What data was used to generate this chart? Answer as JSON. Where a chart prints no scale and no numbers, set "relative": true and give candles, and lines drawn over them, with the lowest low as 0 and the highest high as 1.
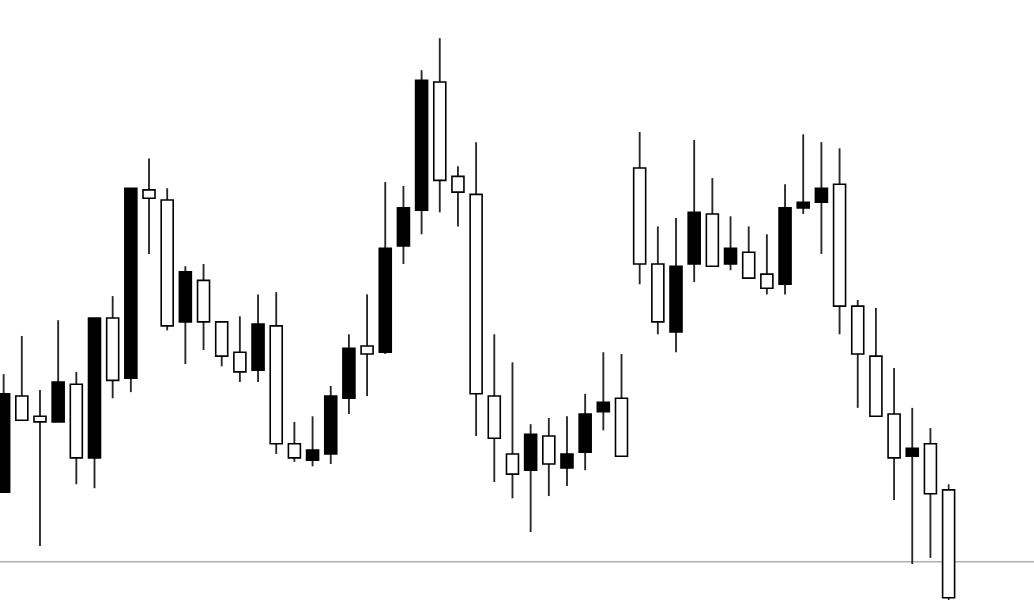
{
  "chart_data": {
    "type": "candlestick",
    "relative": true,
    "categories": [
      null,
      null,
      null,
      null,
      null,
      null,
      null,
      null,
      null,
      null,
      null,
      null,
      null,
      null,
      null,
      null,
      null,
      null,
      null,
      null,
      null,
      null,
      null,
      null,
      null,
      null,
      null,
      null,
      null,
      null,
      null,
      null,
      null,
      null,
      null,
      null,
      null,
      null,
      null,
      null,
      null,
      null,
      null,
      null,
      null,
      null,
      null,
      null,
      null,
      null,
      null,
      null,
      null
    ],
    "ohlc": [
      [
        0.192,
        0.402,
        0.192,
        0.367
      ],
      [
        0.363,
        0.47,
        0.32,
        0.32
      ],
      [
        0.327,
        0.374,
        0.096,
        0.317
      ],
      [
        0.317,
        0.498,
        0.317,
        0.388
      ],
      [
        0.384,
        0.406,
        0.206,
        0.253
      ],
      [
        0.253,
        0.502,
        0.199,
        0.502
      ],
      [
        0.502,
        0.541,
        0.359,
        0.391
      ],
      [
        0.395,
        0.733,
        0.37,
        0.733
      ],
      [
        0.73,
        0.786,
        0.616,
        0.715
      ],
      [
        0.712,
        0.733,
        0.48,
        0.488
      ],
      [
        0.495,
        0.594,
        0.42,
        0.584
      ],
      [
        0.569,
        0.598,
        0.445,
        0.495
      ],
      [
        0.495,
        0.495,
        0.416,
        0.434
      ],
      [
        0.441,
        0.505,
        0.388,
        0.406
      ],
      [
        0.409,
        0.544,
        0.388,
        0.491
      ],
      [
        0.488,
        0.548,
        0.26,
        0.278
      ],
      [
        0.278,
        0.317,
        0.246,
        0.253
      ],
      [
        0.249,
        0.327,
        0.238,
        0.267
      ],
      [
        0.26,
        0.381,
        0.242,
        0.363
      ],
      [
        0.359,
        0.473,
        0.331,
        0.448
      ],
      [
        0.452,
        0.544,
        0.363,
        0.438
      ],
      [
        0.441,
        0.744,
        0.438,
        0.626
      ],
      [
        0.63,
        0.737,
        0.598,
        0.698
      ],
      [
        0.694,
        0.943,
        0.651,
        0.925
      ],
      [
        0.922,
        1.0,
        0.69,
        0.747
      ],
      [
        0.754,
        0.772,
        0.665,
        0.726
      ],
      [
        0.722,
        0.815,
        0.292,
        0.367
      ],
      [
        0.363,
        0.473,
        0.21,
        0.288
      ],
      [
        0.26,
        0.423,
        0.181,
        0.224
      ],
      [
        0.231,
        0.313,
        0.121,
        0.295
      ],
      [
        0.292,
        0.324,
        0.185,
        0.242
      ],
      [
        0.235,
        0.327,
        0.203,
        0.26
      ],
      [
        0.263,
        0.367,
        0.231,
        0.331
      ],
      [
        0.335,
        0.441,
        0.302,
        0.352
      ],
      [
        0.359,
        0.438,
        0.256,
        0.256
      ],
      [
        0.769,
        0.833,
        0.562,
        0.598
      ],
      [
        0.598,
        0.665,
        0.473,
        0.495
      ],
      [
        0.477,
        0.68,
        0.441,
        0.594
      ],
      [
        0.598,
        0.819,
        0.566,
        0.69
      ],
      [
        0.687,
        0.751,
        0.594,
        0.594
      ],
      [
        0.598,
        0.683,
        0.587,
        0.626
      ],
      [
        0.619,
        0.665,
        0.573,
        0.573
      ],
      [
        0.58,
        0.651,
        0.544,
        0.555
      ],
      [
        0.562,
        0.74,
        0.544,
        0.698
      ],
      [
        0.698,
        0.829,
        0.687,
        0.708
      ],
      [
        0.708,
        0.815,
        0.616,
        0.733
      ],
      [
        0.74,
        0.804,
        0.473,
        0.523
      ],
      [
        0.523,
        0.534,
        0.342,
        0.438
      ],
      [
        0.434,
        0.52,
        0.327,
        0.327
      ],
      [
        0.331,
        0.413,
        0.178,
        0.253
      ],
      [
        0.256,
        0.342,
        0.064,
        0.27
      ],
      [
        0.278,
        0.306,
        0.075,
        0.189
      ],
      [
        0.196,
        0.206,
        0.0,
        0.004
      ]
    ],
    "ref_lines": [
      {
        "axis": "y",
        "value": 0.068,
        "color": "#a8b0b8"
      }
    ]
  }
}
